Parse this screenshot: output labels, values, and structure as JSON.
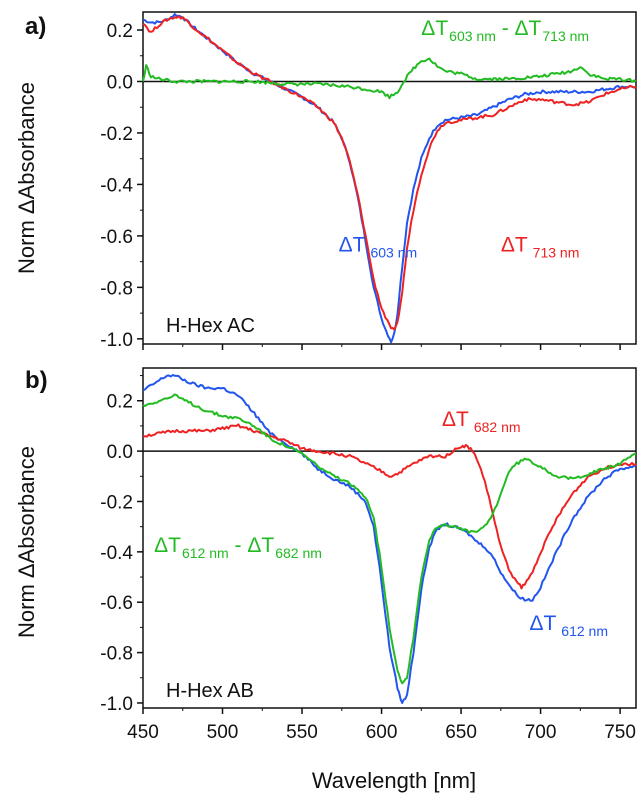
{
  "chart_data": [
    {
      "type": "line",
      "panel_label": "a)",
      "panel_name": "H-Hex AC",
      "ylabel": "Norm ΔAbsorbance",
      "xlim": [
        450,
        760
      ],
      "ylim": [
        -1.02,
        0.27
      ],
      "x_ticks": [
        450,
        500,
        550,
        600,
        650,
        700,
        750
      ],
      "y_ticks": [
        0.2,
        0.0,
        -0.2,
        -0.4,
        -0.6,
        -0.8,
        -1.0
      ],
      "y_tick_labels": [
        "0.2",
        "0.0",
        "-0.2",
        "-0.4",
        "-0.6",
        "-0.8",
        "-1.0"
      ],
      "zero_line": true,
      "series": [
        {
          "color": "#2255ee",
          "x": [
            450,
            455,
            460,
            465,
            470,
            475,
            480,
            490,
            500,
            510,
            520,
            530,
            540,
            550,
            560,
            570,
            575,
            580,
            585,
            590,
            595,
            600,
            603,
            606,
            608,
            610,
            613,
            616,
            620,
            625,
            630,
            635,
            640,
            650,
            660,
            670,
            680,
            690,
            700,
            710,
            720,
            730,
            740,
            750,
            760
          ],
          "y": [
            0.24,
            0.23,
            0.23,
            0.24,
            0.26,
            0.25,
            0.22,
            0.17,
            0.12,
            0.07,
            0.03,
            0.0,
            -0.03,
            -0.06,
            -0.1,
            -0.16,
            -0.22,
            -0.31,
            -0.45,
            -0.62,
            -0.8,
            -0.92,
            -0.97,
            -1.01,
            -0.98,
            -0.9,
            -0.72,
            -0.55,
            -0.42,
            -0.3,
            -0.22,
            -0.17,
            -0.15,
            -0.14,
            -0.13,
            -0.1,
            -0.07,
            -0.05,
            -0.04,
            -0.04,
            -0.04,
            -0.04,
            -0.03,
            -0.02,
            -0.02
          ]
        },
        {
          "color": "#ee2222",
          "x": [
            450,
            455,
            460,
            465,
            470,
            475,
            480,
            490,
            500,
            510,
            520,
            530,
            540,
            550,
            560,
            570,
            575,
            580,
            585,
            590,
            595,
            600,
            605,
            608,
            610,
            613,
            616,
            620,
            625,
            630,
            635,
            640,
            650,
            660,
            670,
            680,
            690,
            700,
            710,
            720,
            730,
            740,
            750,
            760
          ],
          "y": [
            0.23,
            0.19,
            0.22,
            0.24,
            0.25,
            0.25,
            0.22,
            0.17,
            0.12,
            0.07,
            0.03,
            0.0,
            -0.03,
            -0.06,
            -0.1,
            -0.16,
            -0.22,
            -0.31,
            -0.44,
            -0.6,
            -0.77,
            -0.88,
            -0.95,
            -0.97,
            -0.94,
            -0.82,
            -0.65,
            -0.5,
            -0.36,
            -0.26,
            -0.19,
            -0.16,
            -0.15,
            -0.14,
            -0.13,
            -0.1,
            -0.07,
            -0.07,
            -0.08,
            -0.09,
            -0.08,
            -0.05,
            -0.03,
            -0.02
          ]
        },
        {
          "color": "#22bb22",
          "x": [
            450,
            452,
            455,
            460,
            470,
            480,
            500,
            520,
            540,
            560,
            580,
            590,
            600,
            605,
            610,
            615,
            620,
            625,
            630,
            635,
            640,
            650,
            660,
            680,
            700,
            710,
            720,
            725,
            730,
            740,
            750,
            760
          ],
          "y": [
            0.0,
            0.06,
            0.02,
            0.01,
            0.0,
            0.0,
            0.0,
            0.0,
            -0.01,
            -0.01,
            -0.02,
            -0.03,
            -0.04,
            -0.06,
            -0.04,
            0.01,
            0.05,
            0.08,
            0.09,
            0.06,
            0.04,
            0.03,
            0.01,
            0.01,
            0.02,
            0.03,
            0.04,
            0.06,
            0.03,
            0.01,
            0.01,
            0.0
          ]
        }
      ],
      "annotations": [
        {
          "main": "ΔT",
          "sub": "603 nm",
          "color": "#2255ee",
          "at": [
            573,
            -0.66
          ],
          "sub_gap": true
        },
        {
          "main": "ΔT",
          "sub": "713 nm",
          "color": "#ee2222",
          "at": [
            675,
            -0.66
          ],
          "sub_gap": true
        },
        {
          "main": "ΔT",
          "sub": "603 nm",
          "main2": " - ΔT",
          "sub2": "713 nm",
          "color": "#22bb22",
          "at": [
            625,
            0.18
          ]
        }
      ]
    },
    {
      "type": "line",
      "panel_label": "b)",
      "panel_name": "H-Hex AB",
      "ylabel": "Norm ΔAbsorbance",
      "xlabel": "Wavelength [nm]",
      "xlim": [
        450,
        760
      ],
      "ylim": [
        -1.02,
        0.33
      ],
      "x_ticks": [
        450,
        500,
        550,
        600,
        650,
        700,
        750
      ],
      "x_tick_labels": [
        "450",
        "500",
        "550",
        "600",
        "650",
        "700",
        "750"
      ],
      "y_ticks": [
        0.2,
        0.0,
        -0.2,
        -0.4,
        -0.6,
        -0.8,
        -1.0
      ],
      "y_tick_labels": [
        "0.2",
        "0.0",
        "-0.2",
        "-0.4",
        "-0.6",
        "-0.8",
        "-1.0"
      ],
      "zero_line": true,
      "series": [
        {
          "color": "#2255ee",
          "x": [
            450,
            455,
            460,
            465,
            470,
            480,
            490,
            500,
            510,
            520,
            530,
            540,
            550,
            560,
            570,
            580,
            590,
            595,
            600,
            605,
            610,
            613,
            616,
            620,
            625,
            630,
            635,
            640,
            645,
            650,
            655,
            660,
            665,
            670,
            675,
            680,
            685,
            690,
            695,
            700,
            710,
            720,
            730,
            740,
            750,
            760
          ],
          "y": [
            0.24,
            0.26,
            0.28,
            0.3,
            0.3,
            0.27,
            0.25,
            0.25,
            0.22,
            0.15,
            0.07,
            0.03,
            -0.01,
            -0.07,
            -0.11,
            -0.14,
            -0.2,
            -0.3,
            -0.52,
            -0.78,
            -0.94,
            -1.0,
            -0.97,
            -0.8,
            -0.55,
            -0.38,
            -0.31,
            -0.29,
            -0.3,
            -0.31,
            -0.33,
            -0.36,
            -0.38,
            -0.42,
            -0.48,
            -0.53,
            -0.57,
            -0.59,
            -0.59,
            -0.54,
            -0.4,
            -0.27,
            -0.18,
            -0.11,
            -0.07,
            -0.06
          ]
        },
        {
          "color": "#ee2222",
          "x": [
            450,
            460,
            470,
            480,
            490,
            500,
            510,
            520,
            530,
            540,
            550,
            560,
            570,
            580,
            590,
            600,
            605,
            610,
            620,
            630,
            640,
            645,
            650,
            653,
            656,
            660,
            665,
            670,
            675,
            680,
            685,
            688,
            690,
            695,
            700,
            710,
            720,
            730,
            740,
            750,
            760
          ],
          "y": [
            0.06,
            0.07,
            0.08,
            0.08,
            0.08,
            0.09,
            0.1,
            0.08,
            0.06,
            0.04,
            0.01,
            0.0,
            -0.01,
            -0.02,
            -0.05,
            -0.08,
            -0.1,
            -0.09,
            -0.05,
            -0.02,
            -0.02,
            0.0,
            0.02,
            0.02,
            0.01,
            -0.03,
            -0.12,
            -0.25,
            -0.38,
            -0.47,
            -0.52,
            -0.54,
            -0.53,
            -0.48,
            -0.4,
            -0.27,
            -0.17,
            -0.1,
            -0.07,
            -0.05,
            -0.05
          ]
        },
        {
          "color": "#22bb22",
          "x": [
            450,
            455,
            460,
            465,
            470,
            480,
            490,
            500,
            510,
            520,
            530,
            540,
            550,
            560,
            570,
            580,
            590,
            595,
            600,
            605,
            610,
            613,
            616,
            620,
            625,
            630,
            635,
            640,
            645,
            650,
            655,
            660,
            665,
            670,
            675,
            680,
            685,
            690,
            700,
            710,
            720,
            730,
            740,
            750,
            760
          ],
          "y": [
            0.18,
            0.19,
            0.2,
            0.21,
            0.22,
            0.19,
            0.16,
            0.14,
            0.13,
            0.1,
            0.05,
            0.02,
            -0.01,
            -0.06,
            -0.1,
            -0.13,
            -0.18,
            -0.26,
            -0.46,
            -0.7,
            -0.87,
            -0.92,
            -0.9,
            -0.74,
            -0.5,
            -0.35,
            -0.3,
            -0.29,
            -0.3,
            -0.31,
            -0.32,
            -0.32,
            -0.3,
            -0.25,
            -0.17,
            -0.08,
            -0.05,
            -0.03,
            -0.06,
            -0.1,
            -0.11,
            -0.09,
            -0.07,
            -0.05,
            -0.01
          ]
        }
      ],
      "annotations": [
        {
          "main": "ΔT",
          "sub": "682 nm",
          "color": "#ee2222",
          "at": [
            638,
            0.1
          ],
          "sub_gap": true
        },
        {
          "main": "ΔT",
          "sub": "612 nm",
          "color": "#2255ee",
          "at": [
            693,
            -0.71
          ],
          "sub_gap": true
        },
        {
          "main": "ΔT",
          "sub": "612 nm",
          "main2": " - ΔT",
          "sub2": "682 nm",
          "color": "#22bb22",
          "at": [
            457,
            -0.4
          ]
        }
      ]
    }
  ]
}
